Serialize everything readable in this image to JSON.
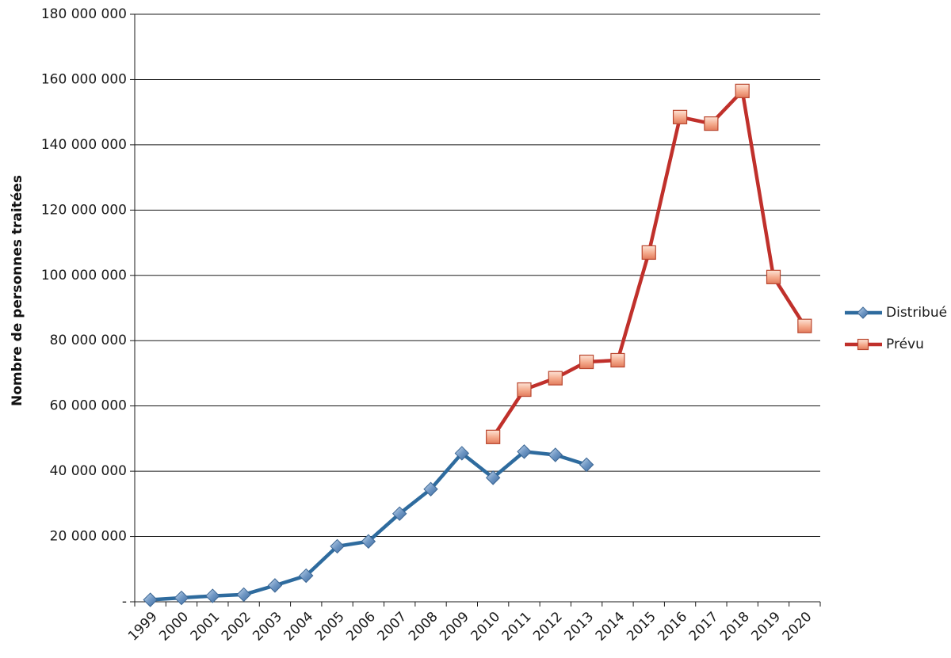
{
  "chart_data": {
    "type": "line",
    "title": "",
    "xlabel": "",
    "ylabel": "Nombre de personnes traitées",
    "ylim": [
      0,
      180000000
    ],
    "y_ticks": [
      0,
      20000000,
      40000000,
      60000000,
      80000000,
      100000000,
      120000000,
      140000000,
      160000000,
      180000000
    ],
    "y_tick_labels": [
      "-",
      "20 000 000",
      "40 000 000",
      "60 000 000",
      "80 000 000",
      "100 000 000",
      "120 000 000",
      "140 000 000",
      "160 000 000",
      "180 000 000"
    ],
    "x": [
      "1999",
      "2000",
      "2001",
      "2002",
      "2003",
      "2004",
      "2005",
      "2006",
      "2007",
      "2008",
      "2009",
      "2010",
      "2011",
      "2012",
      "2013",
      "2014",
      "2015",
      "2016",
      "2017",
      "2018",
      "2019",
      "2020"
    ],
    "grid": "horizontal",
    "legend_position": "right",
    "series": [
      {
        "name": "Distribué",
        "color": "#2E6B9E",
        "marker": "diamond",
        "values": [
          600000,
          1200000,
          1800000,
          2200000,
          5000000,
          8000000,
          17000000,
          18500000,
          27000000,
          34500000,
          45500000,
          38000000,
          46000000,
          45000000,
          42000000,
          null,
          null,
          null,
          null,
          null,
          null,
          null
        ]
      },
      {
        "name": "Prévu",
        "color": "#C0302B",
        "marker": "square",
        "values": [
          null,
          null,
          null,
          null,
          null,
          null,
          null,
          null,
          null,
          null,
          null,
          50500000,
          65000000,
          68500000,
          73500000,
          74000000,
          107000000,
          148500000,
          146500000,
          156500000,
          99500000,
          84500000
        ]
      }
    ]
  }
}
